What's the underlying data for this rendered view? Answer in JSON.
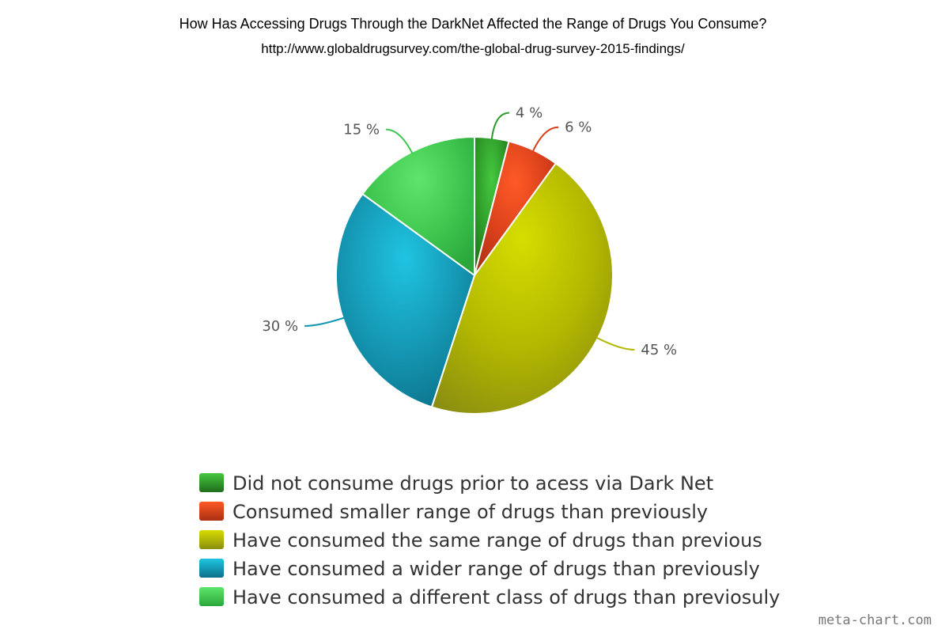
{
  "chart_data": {
    "type": "pie",
    "title": "How Has Accessing Drugs Through the DarkNet Affected the Range of Drugs You Consume?",
    "subtitle": "http://www.globaldrugsurvey.com/the-global-drug-survey-2015-findings/",
    "unit": "%",
    "legend_position": "bottom",
    "slices": [
      {
        "label": "Did not consume drugs prior to acess via Dark Net",
        "value": 4,
        "display": "4 %",
        "color": "#2e9a2a",
        "light": "#45c83e",
        "dark": "#1f6d1b"
      },
      {
        "label": "Consumed smaller range of drugs than previously",
        "value": 6,
        "display": "6 %",
        "color": "#d9401b",
        "light": "#ff5a26",
        "dark": "#a92f12"
      },
      {
        "label": "Have consumed the same range of drugs than previous",
        "value": 45,
        "display": "45 %",
        "color": "#b3b800",
        "light": "#d6dd00",
        "dark": "#8a8d10"
      },
      {
        "label": "Have consumed a wider range of drugs than previously",
        "value": 30,
        "display": "30 %",
        "color": "#1597b3",
        "light": "#1fc4e2",
        "dark": "#0a7088"
      },
      {
        "label": "Have consumed a different class of drugs than previosuly",
        "value": 15,
        "display": "15 %",
        "color": "#3ec64e",
        "light": "#5ee66c",
        "dark": "#2aa63a"
      }
    ]
  },
  "watermark": "meta-chart.com"
}
